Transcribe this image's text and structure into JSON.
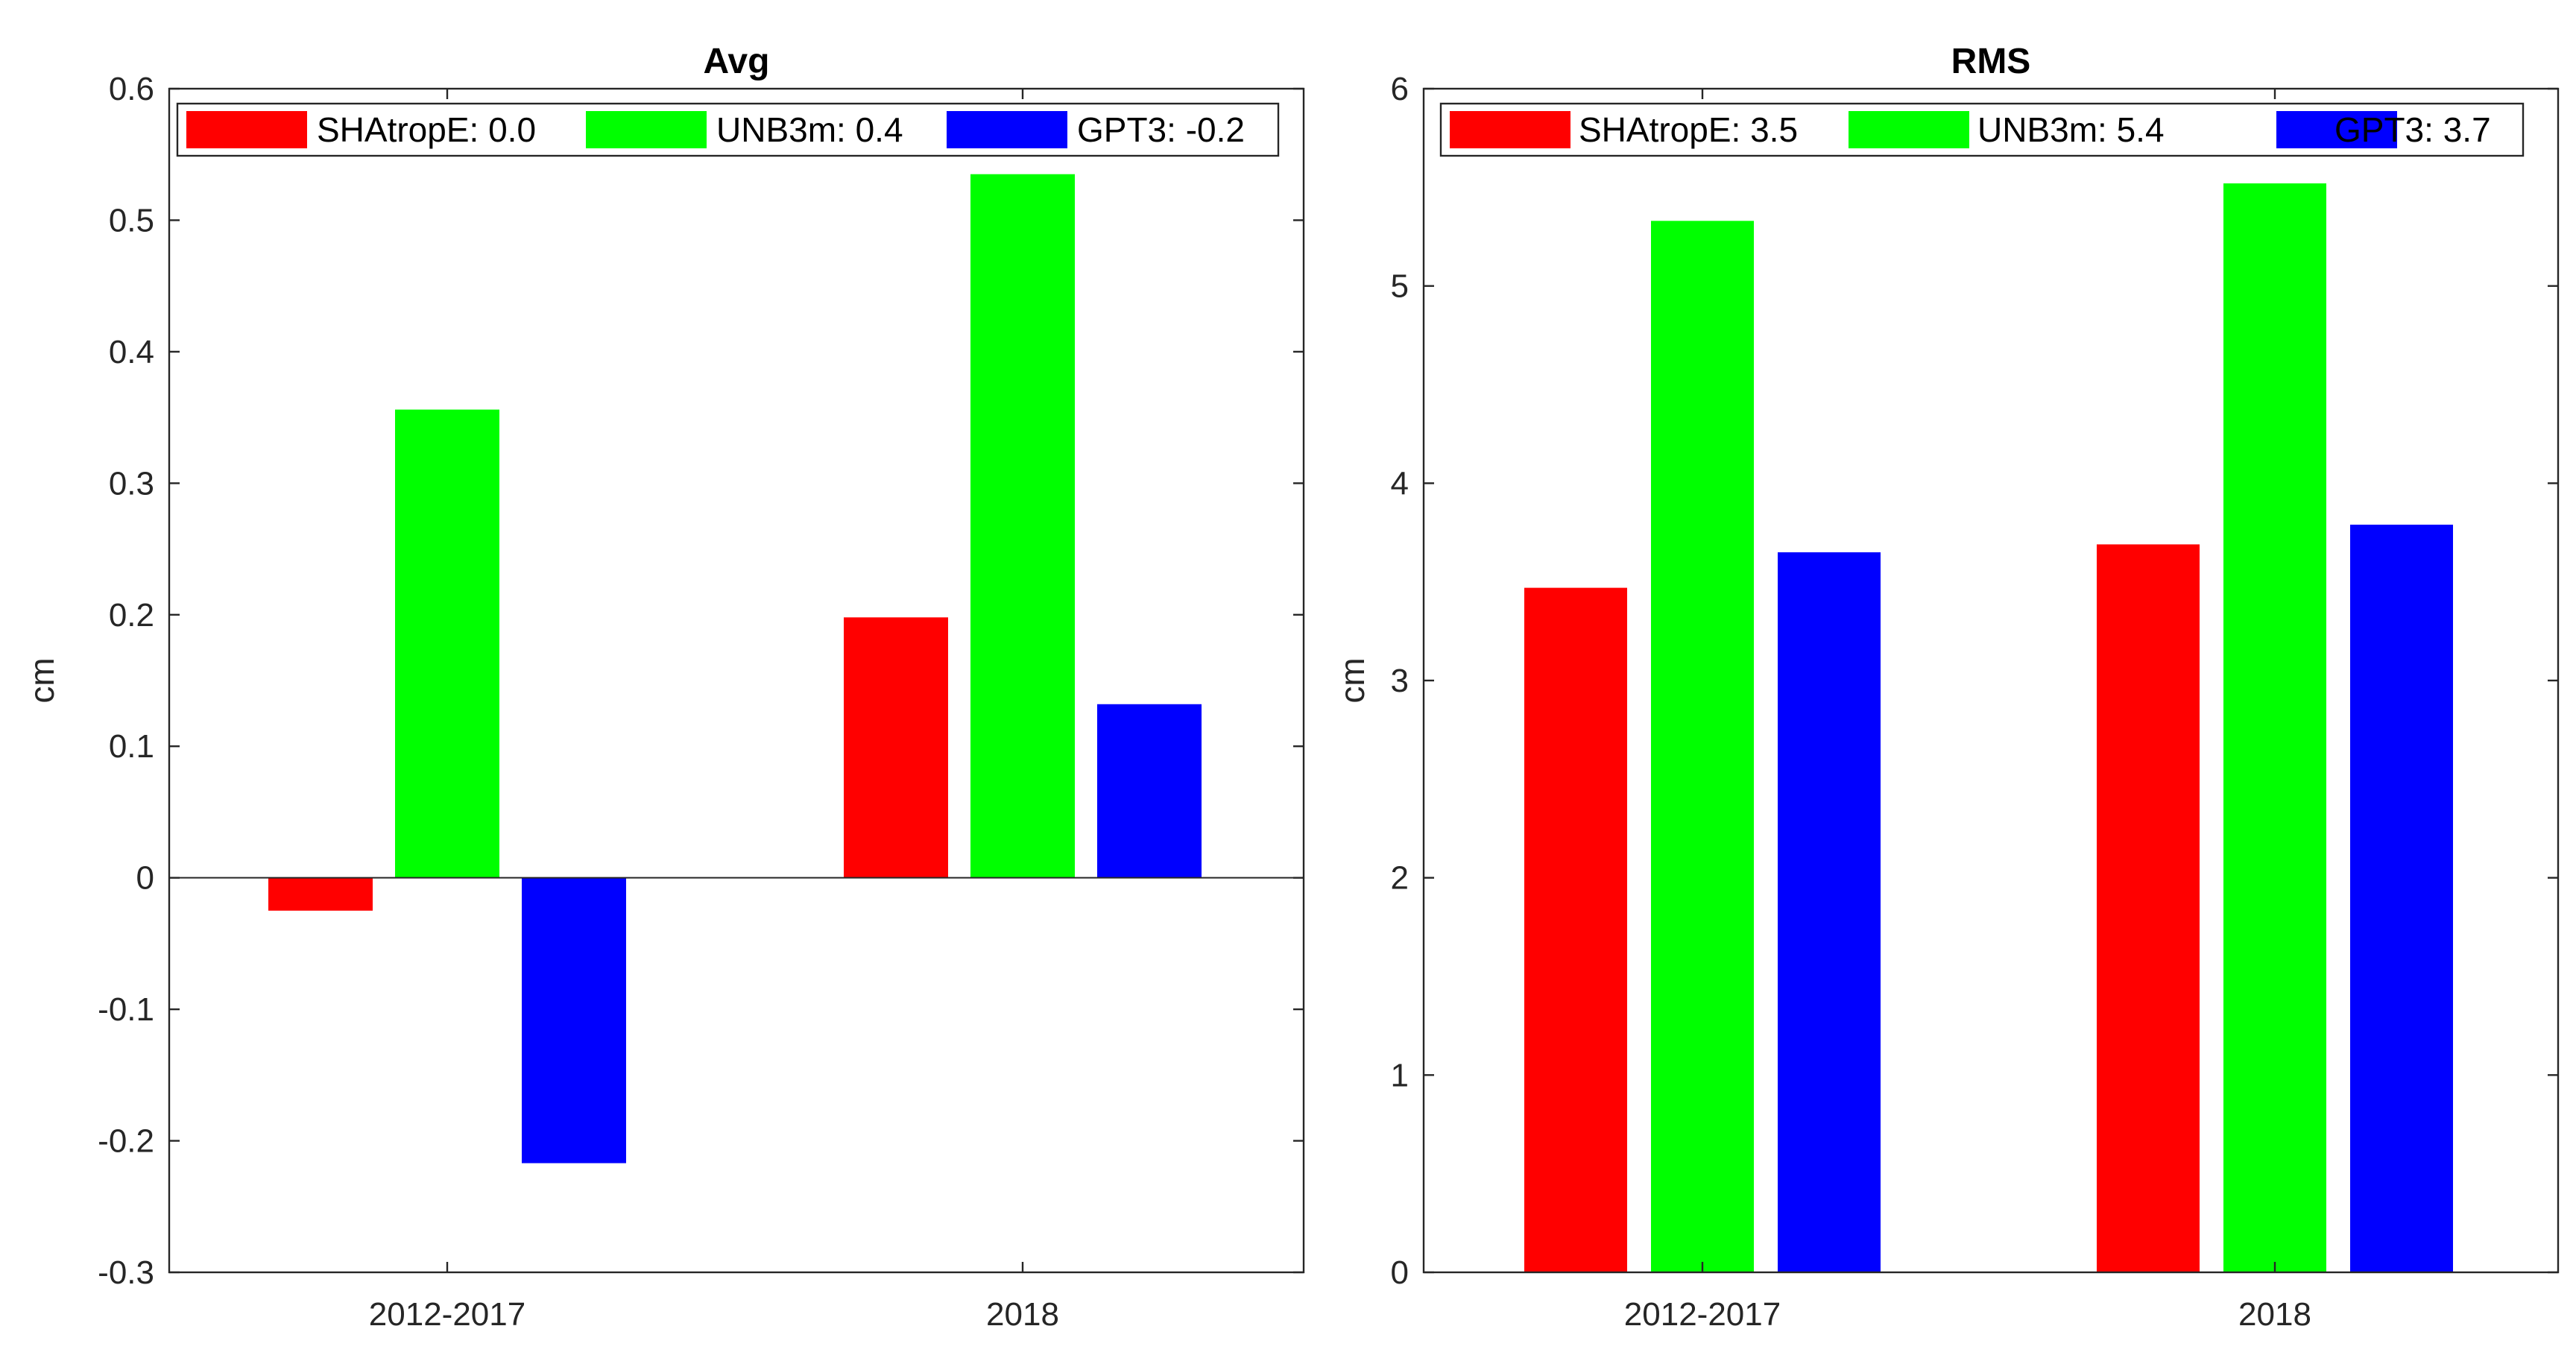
{
  "chart_data": [
    {
      "type": "bar",
      "title": "Avg",
      "xlabel": "",
      "ylabel": "cm",
      "categories": [
        "2012-2017",
        "2018"
      ],
      "ylim": [
        -0.3,
        0.6
      ],
      "yticks": [
        -0.3,
        -0.2,
        -0.1,
        0,
        0.1,
        0.2,
        0.3,
        0.4,
        0.5,
        0.6
      ],
      "ytick_labels": [
        "-0.3",
        "-0.2",
        "-0.1",
        "0",
        "0.1",
        "0.2",
        "0.3",
        "0.4",
        "0.5",
        "0.6"
      ],
      "legend_position": "top",
      "series": [
        {
          "name": "SHAtropE",
          "legend_label": "SHAtropE: 0.0",
          "color": "#ff0000",
          "values": [
            -0.025,
            0.198
          ]
        },
        {
          "name": "UNB3m",
          "legend_label": "UNB3m: 0.4",
          "color": "#00ff00",
          "values": [
            0.356,
            0.535
          ]
        },
        {
          "name": "GPT3",
          "legend_label": "GPT3: -0.2",
          "color": "#0000ff",
          "values": [
            -0.217,
            0.132
          ]
        }
      ]
    },
    {
      "type": "bar",
      "title": "RMS",
      "xlabel": "",
      "ylabel": "cm",
      "categories": [
        "2012-2017",
        "2018"
      ],
      "ylim": [
        0,
        6
      ],
      "yticks": [
        0,
        1,
        2,
        3,
        4,
        5,
        6
      ],
      "ytick_labels": [
        "0",
        "1",
        "2",
        "3",
        "4",
        "5",
        "6"
      ],
      "legend_position": "top",
      "series": [
        {
          "name": "SHAtropE",
          "legend_label": "SHAtropE: 3.5",
          "color": "#ff0000",
          "values": [
            3.47,
            3.69
          ]
        },
        {
          "name": "UNB3m",
          "legend_label": "UNB3m: 5.4",
          "color": "#00ff00",
          "values": [
            5.33,
            5.52
          ]
        },
        {
          "name": "GPT3",
          "legend_label": "GPT3: 3.7",
          "color": "#0000ff",
          "values": [
            3.65,
            3.79
          ]
        }
      ]
    }
  ]
}
